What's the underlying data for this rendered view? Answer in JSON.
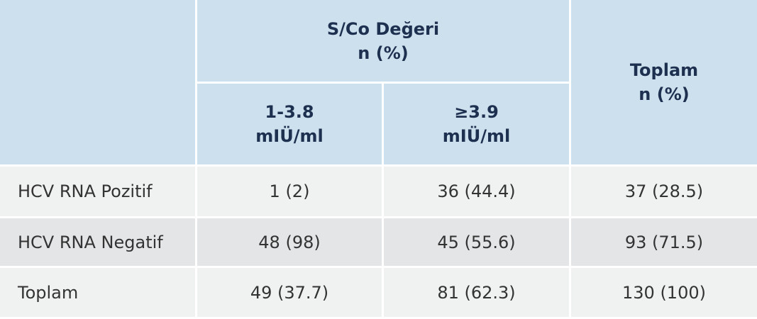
{
  "table": {
    "header": {
      "group": [
        "S/Co Değeri",
        "n (%)"
      ],
      "total": [
        "Toplam",
        "n (%)"
      ],
      "subgroups": [
        [
          "1-3.8",
          "mIÜ/ml"
        ],
        [
          "≥3.9",
          "mIÜ/ml"
        ]
      ]
    },
    "rows": [
      [
        "HCV RNA Pozitif",
        "1 (2)",
        "36 (44.4)",
        "37 (28.5)"
      ],
      [
        "HCV RNA Negatif",
        "48 (98)",
        "45 (55.6)",
        "93 (71.5)"
      ],
      [
        "Toplam",
        "49 (37.7)",
        "81 (62.3)",
        "130 (100)"
      ]
    ]
  }
}
